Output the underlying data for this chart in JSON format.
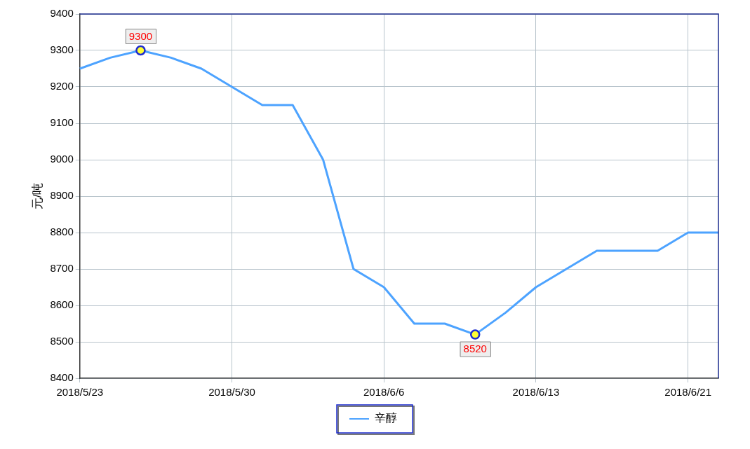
{
  "chart_data": {
    "type": "line",
    "ylabel": "元/吨",
    "categories": [
      "2018/5/23",
      null,
      null,
      null,
      null,
      "2018/5/30",
      null,
      null,
      null,
      null,
      "2018/6/6",
      null,
      null,
      null,
      null,
      "2018/6/13",
      null,
      null,
      null,
      null,
      "2018/6/21",
      null
    ],
    "series": [
      {
        "name": "辛醇",
        "color": "#4da3ff",
        "values": [
          9250,
          9280,
          9300,
          9280,
          9250,
          9200,
          9150,
          9150,
          9000,
          8700,
          8650,
          8550,
          8550,
          8520,
          8580,
          8650,
          8700,
          8750,
          8750,
          8750,
          8800,
          8800
        ],
        "value_labels": [
          null,
          null,
          "9300",
          null,
          null,
          null,
          null,
          null,
          null,
          null,
          null,
          null,
          null,
          "8520",
          null,
          null,
          null,
          null,
          null,
          null,
          null,
          null
        ]
      }
    ],
    "ylim": [
      8400,
      9400
    ],
    "yticks": [
      8400,
      8500,
      8600,
      8700,
      8800,
      8900,
      9000,
      9100,
      9200,
      9300,
      9400
    ],
    "grid": true,
    "legend": "bottom",
    "marker": "none",
    "line_style": "solid"
  }
}
